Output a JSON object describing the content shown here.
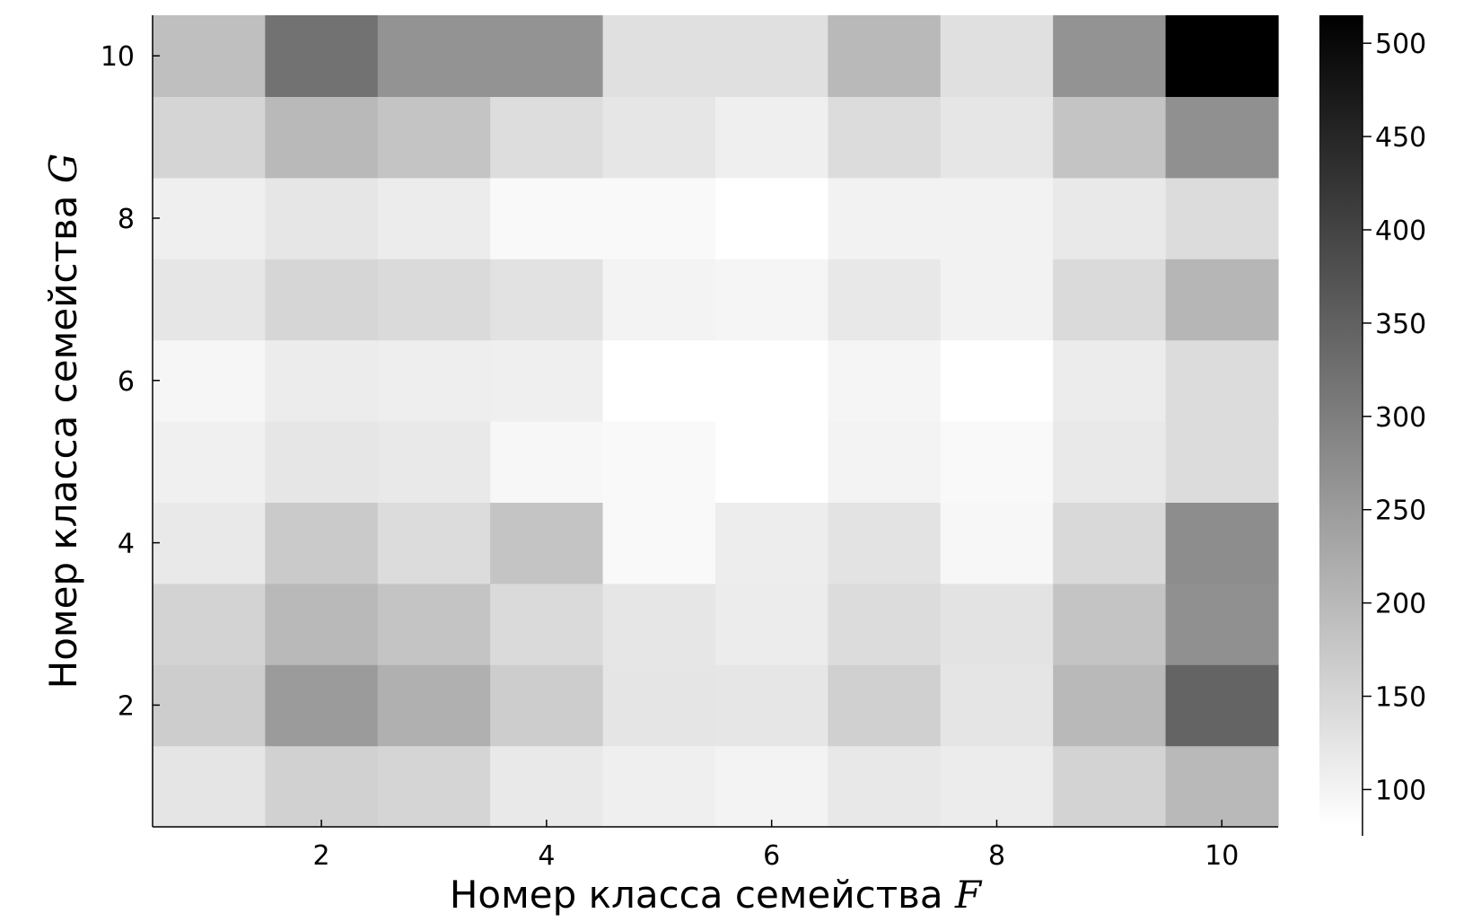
{
  "chart_data": {
    "type": "heatmap",
    "xlabel": {
      "text": "Номер класса семейства ",
      "var": "F"
    },
    "ylabel": {
      "text": "Номер класса семейства ",
      "var": "G"
    },
    "x_values": [
      1,
      2,
      3,
      4,
      5,
      6,
      7,
      8,
      9,
      10
    ],
    "y_values": [
      1,
      2,
      3,
      4,
      5,
      6,
      7,
      8,
      9,
      10
    ],
    "x_ticks": [
      2,
      4,
      6,
      8,
      10
    ],
    "y_ticks": [
      2,
      4,
      6,
      8,
      10
    ],
    "xlim": [
      0.5,
      10.5
    ],
    "ylim": [
      0.5,
      10.5
    ],
    "colorbar": {
      "range": [
        80,
        515
      ],
      "ticks": [
        100,
        150,
        200,
        250,
        300,
        350,
        400,
        450,
        500
      ],
      "colormap": "grays (white = low, black = high)",
      "low_color": "#ffffff",
      "high_color": "#000000"
    },
    "values": [
      [
        125,
        158,
        152,
        118,
        108,
        100,
        120,
        113,
        155,
        200
      ],
      [
        165,
        250,
        215,
        165,
        125,
        123,
        160,
        125,
        200,
        345
      ],
      [
        155,
        200,
        180,
        143,
        122,
        113,
        140,
        127,
        180,
        270
      ],
      [
        118,
        170,
        140,
        180,
        90,
        110,
        128,
        93,
        145,
        275
      ],
      [
        105,
        122,
        118,
        93,
        90,
        80,
        100,
        90,
        118,
        140
      ],
      [
        95,
        112,
        109,
        108,
        80,
        80,
        97,
        80,
        113,
        140
      ],
      [
        122,
        150,
        143,
        130,
        100,
        97,
        120,
        103,
        143,
        205
      ],
      [
        108,
        122,
        113,
        90,
        90,
        80,
        103,
        103,
        118,
        140
      ],
      [
        152,
        200,
        180,
        138,
        122,
        108,
        140,
        122,
        180,
        270
      ],
      [
        190,
        320,
        265,
        265,
        133,
        133,
        200,
        133,
        265,
        515
      ]
    ]
  }
}
